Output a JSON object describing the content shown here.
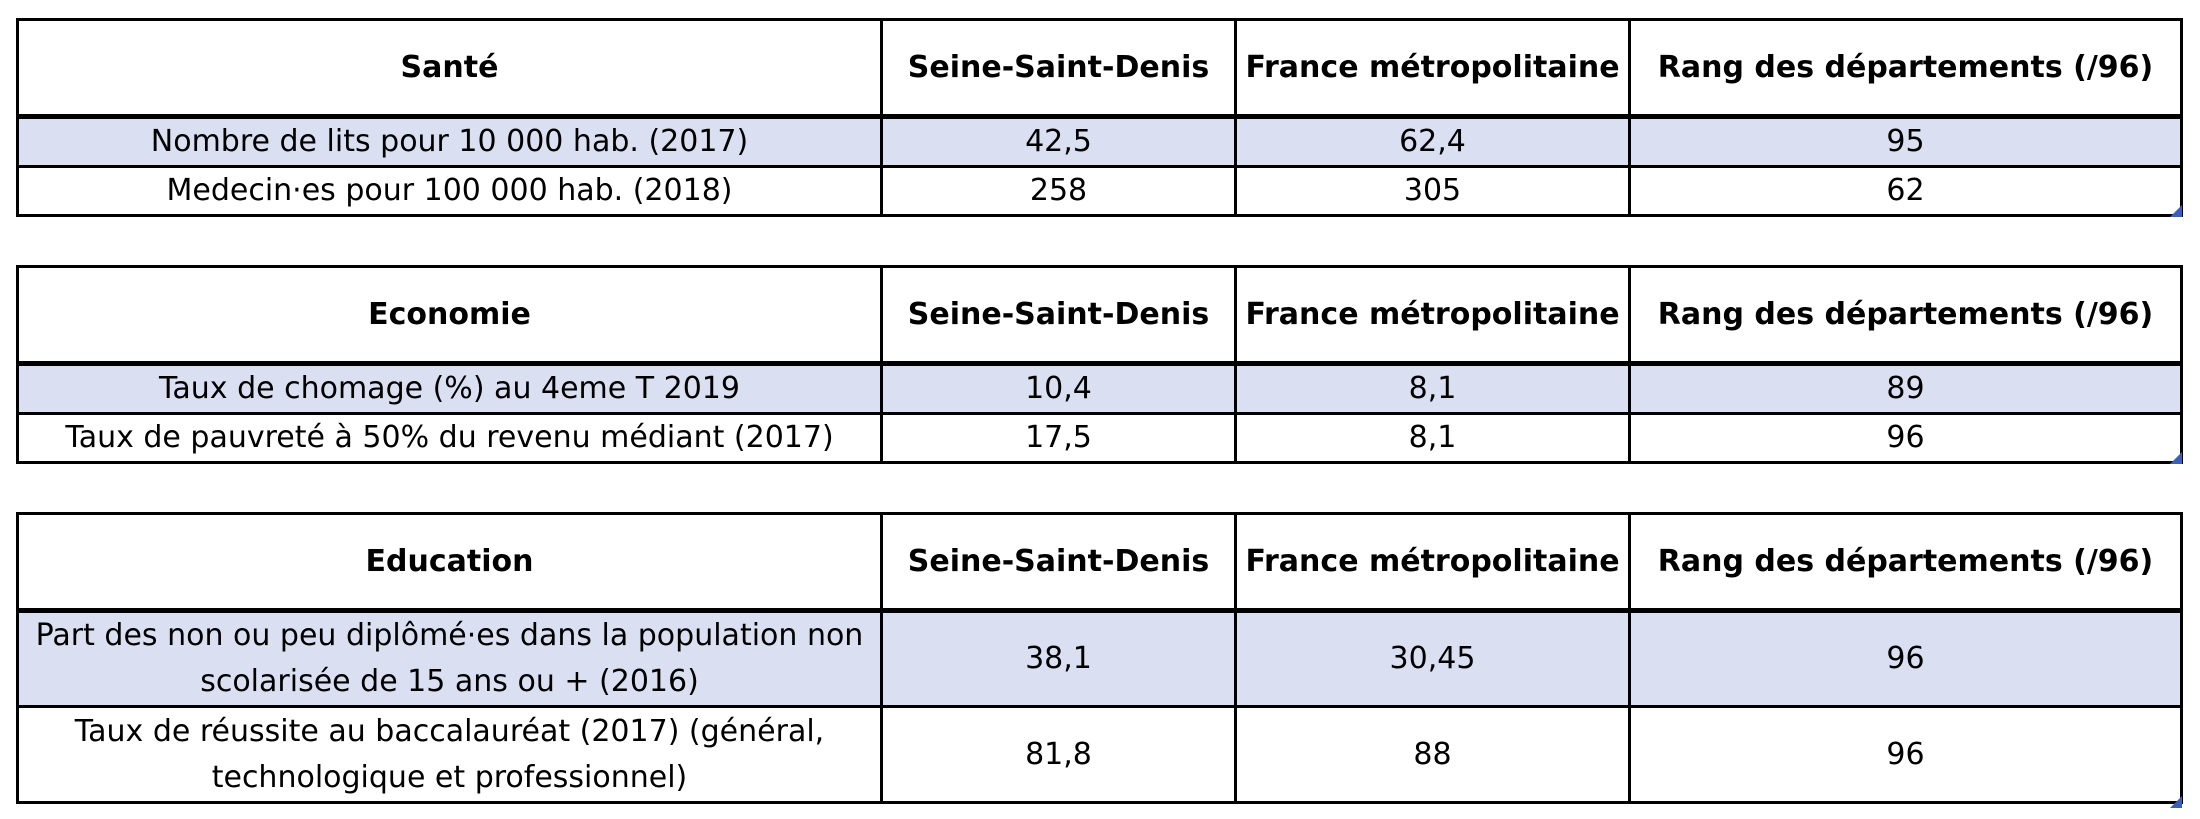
{
  "tables": [
    {
      "headers": [
        "Santé",
        "Seine-Saint-Denis",
        "France métropolitaine",
        "Rang des départements (/96)"
      ],
      "rows": [
        [
          "Nombre de lits pour 10 000 hab. (2017)",
          "42,5",
          "62,4",
          "95"
        ],
        [
          "Medecin·es pour 100 000 hab. (2018)",
          "258",
          "305",
          "62"
        ]
      ]
    },
    {
      "headers": [
        "Economie",
        "Seine-Saint-Denis",
        "France métropolitaine",
        "Rang des départements (/96)"
      ],
      "rows": [
        [
          "Taux de chomage (%) au 4eme T 2019",
          "10,4",
          "8,1",
          "89"
        ],
        [
          "Taux de pauvreté à 50% du revenu médiant (2017)",
          "17,5",
          "8,1",
          "96"
        ]
      ]
    },
    {
      "headers": [
        "Education",
        "Seine-Saint-Denis",
        "France métropolitaine",
        "Rang des départements (/96)"
      ],
      "rows": [
        [
          "Part des non ou peu diplômé·es dans la population non scolarisée de 15 ans ou + (2016)",
          "38,1",
          "30,45",
          "96"
        ],
        [
          "Taux de réussite au baccalauréat (2017) (général, technologique et professionnel)",
          "81,8",
          "88",
          "96"
        ]
      ]
    }
  ],
  "colors": {
    "shaded_row": "#dae0f2",
    "border": "#000000",
    "corner_mark": "#3b5fb8"
  }
}
